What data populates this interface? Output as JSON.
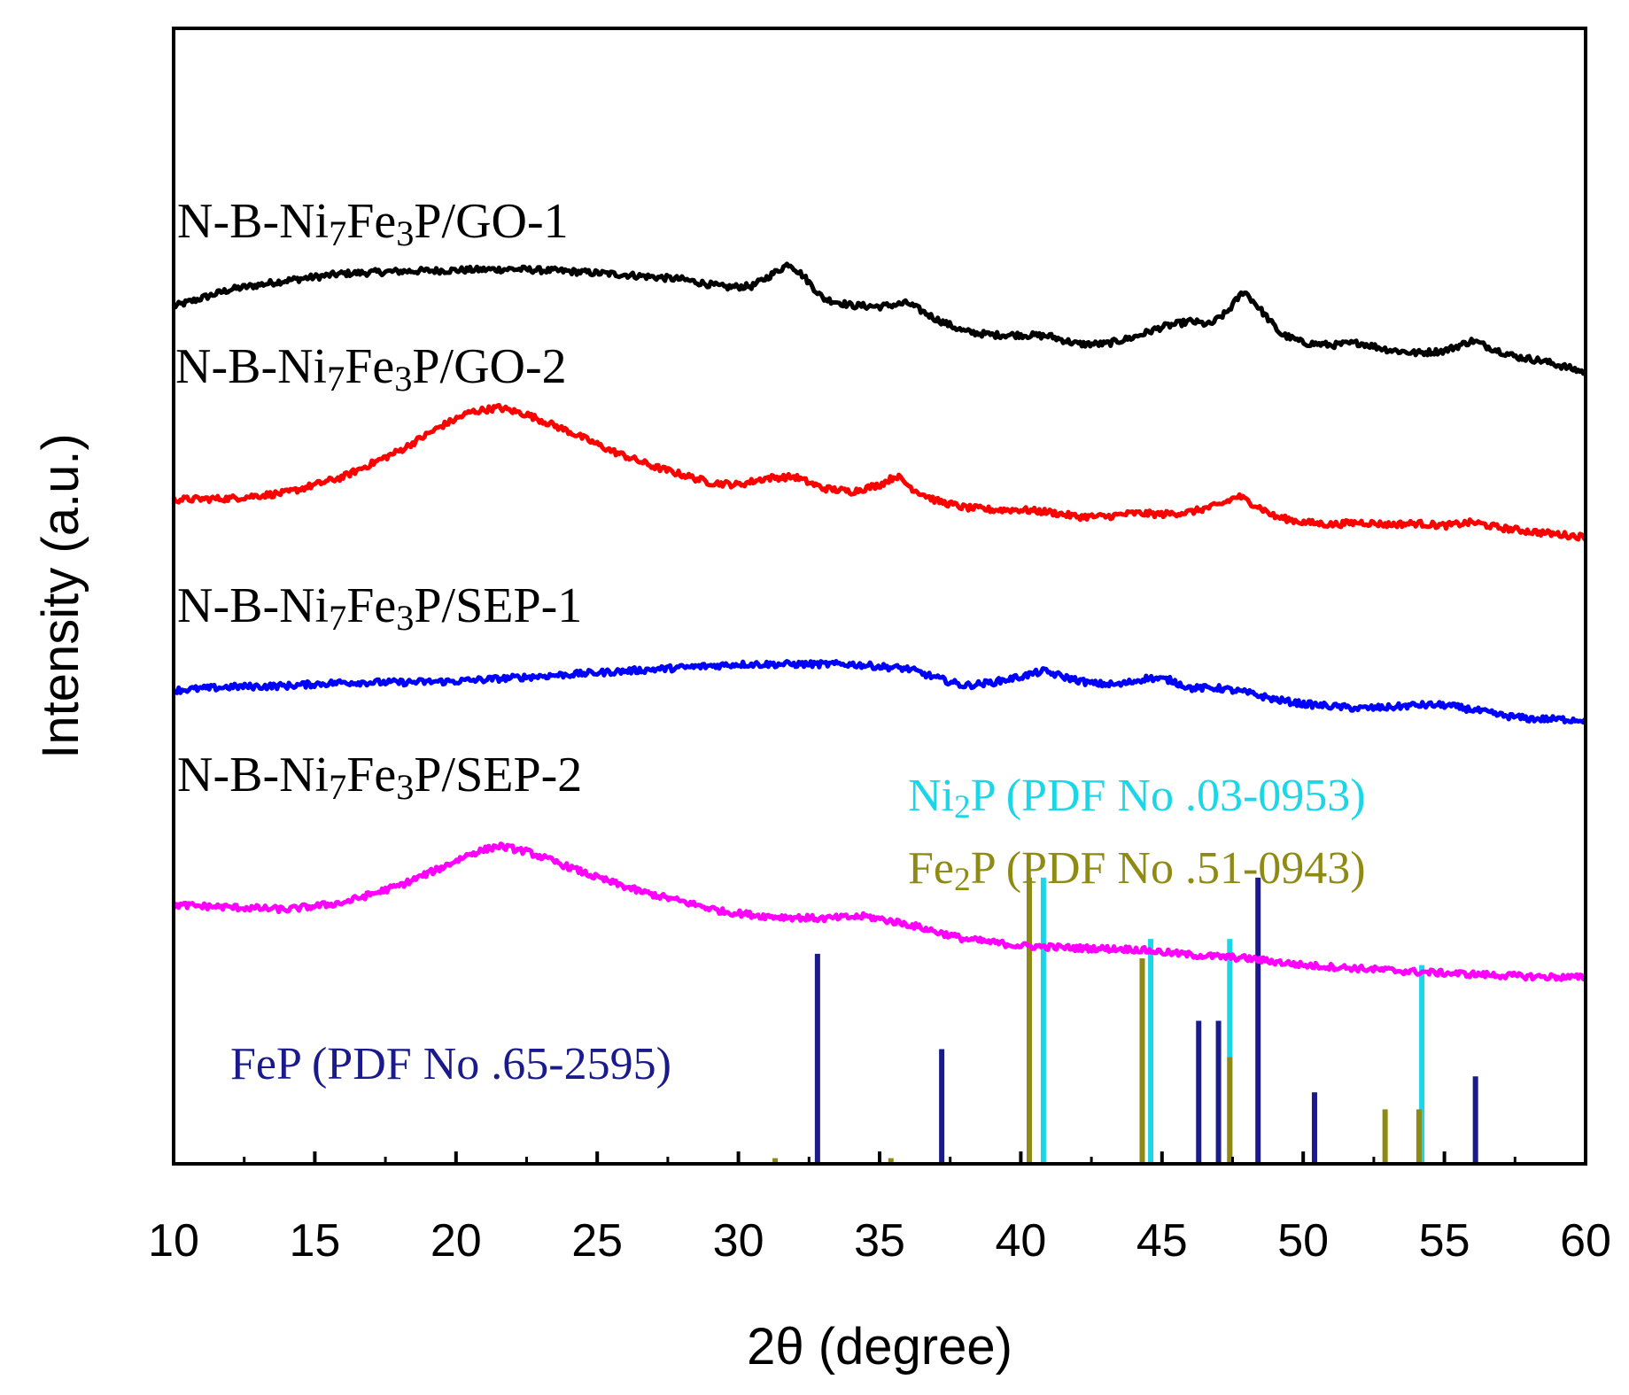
{
  "chart_data": {
    "type": "line",
    "title": "",
    "xlabel": "2θ (degree)",
    "ylabel": "Intensity (a.u.)",
    "xlim": [
      10,
      60
    ],
    "xticks": [
      10,
      15,
      20,
      25,
      30,
      35,
      40,
      45,
      50,
      55,
      60
    ],
    "yticks": [],
    "series": [
      {
        "name": "N-B-Ni7Fe3P/GO-1",
        "label_parts": [
          {
            "t": "N-B-Ni"
          },
          {
            "t": "7",
            "s": "sub"
          },
          {
            "t": "Fe"
          },
          {
            "t": "3",
            "s": "sub"
          },
          {
            "t": "P/GO-1"
          }
        ],
        "color": "#000000",
        "points": [
          [
            10,
            0.755
          ],
          [
            12,
            0.77
          ],
          [
            14,
            0.778
          ],
          [
            16,
            0.784
          ],
          [
            18,
            0.786
          ],
          [
            20,
            0.787
          ],
          [
            22,
            0.788
          ],
          [
            24,
            0.786
          ],
          [
            26,
            0.783
          ],
          [
            28,
            0.779
          ],
          [
            29.5,
            0.772
          ],
          [
            30.5,
            0.773
          ],
          [
            31.3,
            0.785
          ],
          [
            31.8,
            0.793
          ],
          [
            32.3,
            0.782
          ],
          [
            33,
            0.762
          ],
          [
            34,
            0.756
          ],
          [
            35,
            0.755
          ],
          [
            36,
            0.758
          ],
          [
            37,
            0.744
          ],
          [
            38,
            0.733
          ],
          [
            39,
            0.73
          ],
          [
            40,
            0.73
          ],
          [
            41,
            0.729
          ],
          [
            42,
            0.722
          ],
          [
            43,
            0.722
          ],
          [
            44,
            0.728
          ],
          [
            45,
            0.737
          ],
          [
            46,
            0.742
          ],
          [
            46.7,
            0.739
          ],
          [
            47.3,
            0.75
          ],
          [
            47.9,
            0.769
          ],
          [
            48.5,
            0.752
          ],
          [
            49.2,
            0.731
          ],
          [
            50,
            0.723
          ],
          [
            51,
            0.721
          ],
          [
            52,
            0.723
          ],
          [
            53,
            0.717
          ],
          [
            54,
            0.714
          ],
          [
            55,
            0.716
          ],
          [
            56,
            0.725
          ],
          [
            56.6,
            0.719
          ],
          [
            57.5,
            0.711
          ],
          [
            58.5,
            0.707
          ],
          [
            60,
            0.697
          ]
        ]
      },
      {
        "name": "N-B-Ni7Fe3P/GO-2",
        "label_parts": [
          {
            "t": "N-B-Ni"
          },
          {
            "t": "7",
            "s": "sub"
          },
          {
            "t": "Fe"
          },
          {
            "t": "3",
            "s": "sub"
          },
          {
            "t": "P/GO-2"
          }
        ],
        "color": "#ff0000",
        "points": [
          [
            10,
            0.585
          ],
          [
            12,
            0.586
          ],
          [
            14,
            0.591
          ],
          [
            16,
            0.605
          ],
          [
            18,
            0.628
          ],
          [
            19.5,
            0.65
          ],
          [
            20.5,
            0.662
          ],
          [
            21.5,
            0.666
          ],
          [
            22.5,
            0.66
          ],
          [
            24,
            0.645
          ],
          [
            25.5,
            0.628
          ],
          [
            27,
            0.614
          ],
          [
            28,
            0.607
          ],
          [
            29,
            0.6
          ],
          [
            30,
            0.598
          ],
          [
            31,
            0.604
          ],
          [
            32,
            0.605
          ],
          [
            33,
            0.595
          ],
          [
            34,
            0.592
          ],
          [
            35,
            0.598
          ],
          [
            35.6,
            0.606
          ],
          [
            36.2,
            0.594
          ],
          [
            37,
            0.584
          ],
          [
            38,
            0.578
          ],
          [
            39,
            0.576
          ],
          [
            40,
            0.576
          ],
          [
            41,
            0.574
          ],
          [
            42,
            0.57
          ],
          [
            43,
            0.57
          ],
          [
            44,
            0.573
          ],
          [
            45,
            0.572
          ],
          [
            46,
            0.574
          ],
          [
            47,
            0.58
          ],
          [
            47.7,
            0.588
          ],
          [
            48.4,
            0.579
          ],
          [
            49,
            0.57
          ],
          [
            50,
            0.565
          ],
          [
            51,
            0.563
          ],
          [
            52,
            0.565
          ],
          [
            53,
            0.563
          ],
          [
            54,
            0.564
          ],
          [
            55,
            0.562
          ],
          [
            56,
            0.565
          ],
          [
            57,
            0.56
          ],
          [
            58,
            0.557
          ],
          [
            60,
            0.552
          ]
        ]
      },
      {
        "name": "N-B-Ni7Fe3P/SEP-1",
        "label_parts": [
          {
            "t": "N-B-Ni"
          },
          {
            "t": "7",
            "s": "sub"
          },
          {
            "t": "Fe"
          },
          {
            "t": "3",
            "s": "sub"
          },
          {
            "t": "P/SEP-1"
          }
        ],
        "color": "#0000ff",
        "points": [
          [
            10,
            0.417
          ],
          [
            12,
            0.42
          ],
          [
            14,
            0.421
          ],
          [
            16,
            0.424
          ],
          [
            18,
            0.424
          ],
          [
            20,
            0.425
          ],
          [
            22,
            0.428
          ],
          [
            24,
            0.431
          ],
          [
            26,
            0.434
          ],
          [
            28,
            0.437
          ],
          [
            30,
            0.44
          ],
          [
            32,
            0.44
          ],
          [
            34,
            0.44
          ],
          [
            35,
            0.438
          ],
          [
            36,
            0.436
          ],
          [
            37,
            0.428
          ],
          [
            38,
            0.421
          ],
          [
            39,
            0.424
          ],
          [
            40,
            0.429
          ],
          [
            40.8,
            0.434
          ],
          [
            41.5,
            0.429
          ],
          [
            42.5,
            0.423
          ],
          [
            43.5,
            0.422
          ],
          [
            44.5,
            0.428
          ],
          [
            45.3,
            0.426
          ],
          [
            46,
            0.419
          ],
          [
            47,
            0.419
          ],
          [
            48,
            0.415
          ],
          [
            49,
            0.409
          ],
          [
            50,
            0.405
          ],
          [
            51,
            0.403
          ],
          [
            52,
            0.401
          ],
          [
            53,
            0.402
          ],
          [
            54,
            0.404
          ],
          [
            55,
            0.404
          ],
          [
            56,
            0.4
          ],
          [
            57,
            0.395
          ],
          [
            58,
            0.392
          ],
          [
            60,
            0.391
          ]
        ]
      },
      {
        "name": "N-B-Ni7Fe3P/SEP-2",
        "label_parts": [
          {
            "t": "N-B-Ni"
          },
          {
            "t": "7",
            "s": "sub"
          },
          {
            "t": "Fe"
          },
          {
            "t": "3",
            "s": "sub"
          },
          {
            "t": "P/SEP-2"
          }
        ],
        "color": "#ff00ff",
        "points": [
          [
            10,
            0.228
          ],
          [
            12,
            0.226
          ],
          [
            14,
            0.224
          ],
          [
            16,
            0.23
          ],
          [
            18,
            0.245
          ],
          [
            19.5,
            0.261
          ],
          [
            20.5,
            0.273
          ],
          [
            21.5,
            0.28
          ],
          [
            22.5,
            0.275
          ],
          [
            23.5,
            0.266
          ],
          [
            25,
            0.252
          ],
          [
            26.5,
            0.24
          ],
          [
            28,
            0.231
          ],
          [
            29.5,
            0.222
          ],
          [
            31,
            0.218
          ],
          [
            33,
            0.216
          ],
          [
            34.5,
            0.218
          ],
          [
            36,
            0.211
          ],
          [
            38,
            0.198
          ],
          [
            40,
            0.192
          ],
          [
            42,
            0.19
          ],
          [
            44,
            0.189
          ],
          [
            46,
            0.184
          ],
          [
            48,
            0.181
          ],
          [
            50,
            0.175
          ],
          [
            52,
            0.172
          ],
          [
            54,
            0.169
          ],
          [
            56,
            0.167
          ],
          [
            58,
            0.165
          ],
          [
            60,
            0.164
          ]
        ]
      }
    ],
    "reference_patterns": [
      {
        "name": "FeP (PDF No .65-2595)",
        "label_parts": [
          {
            "t": "FeP (PDF No .65-2595)"
          }
        ],
        "color": "#1a1a8c",
        "sticks": [
          [
            32.8,
            0.185
          ],
          [
            37.2,
            0.101
          ],
          [
            46.3,
            0.126
          ],
          [
            47.0,
            0.126
          ],
          [
            48.4,
            0.252
          ],
          [
            50.4,
            0.063
          ],
          [
            56.1,
            0.077
          ]
        ]
      },
      {
        "name": "Ni2P (PDF No .03-0953)",
        "label_parts": [
          {
            "t": "Ni"
          },
          {
            "t": "2",
            "s": "sub"
          },
          {
            "t": "P (PDF No .03-0953)"
          }
        ],
        "color": "#1ad6e6",
        "sticks": [
          [
            40.8,
            0.252
          ],
          [
            44.6,
            0.198
          ],
          [
            47.4,
            0.198
          ],
          [
            54.2,
            0.175
          ]
        ]
      },
      {
        "name": "Fe2P (PDF No .51-0943)",
        "label_parts": [
          {
            "t": "Fe"
          },
          {
            "t": "2",
            "s": "sub"
          },
          {
            "t": "P (PDF No .51-0943)"
          }
        ],
        "color": "#8f8a14",
        "sticks": [
          [
            31.3,
            0.005
          ],
          [
            35.4,
            0.005
          ],
          [
            40.3,
            0.252
          ],
          [
            44.3,
            0.181
          ],
          [
            47.4,
            0.094
          ],
          [
            52.9,
            0.048
          ],
          [
            54.1,
            0.048
          ]
        ]
      }
    ],
    "grid": false,
    "legend": "labels placed beside each curve"
  }
}
